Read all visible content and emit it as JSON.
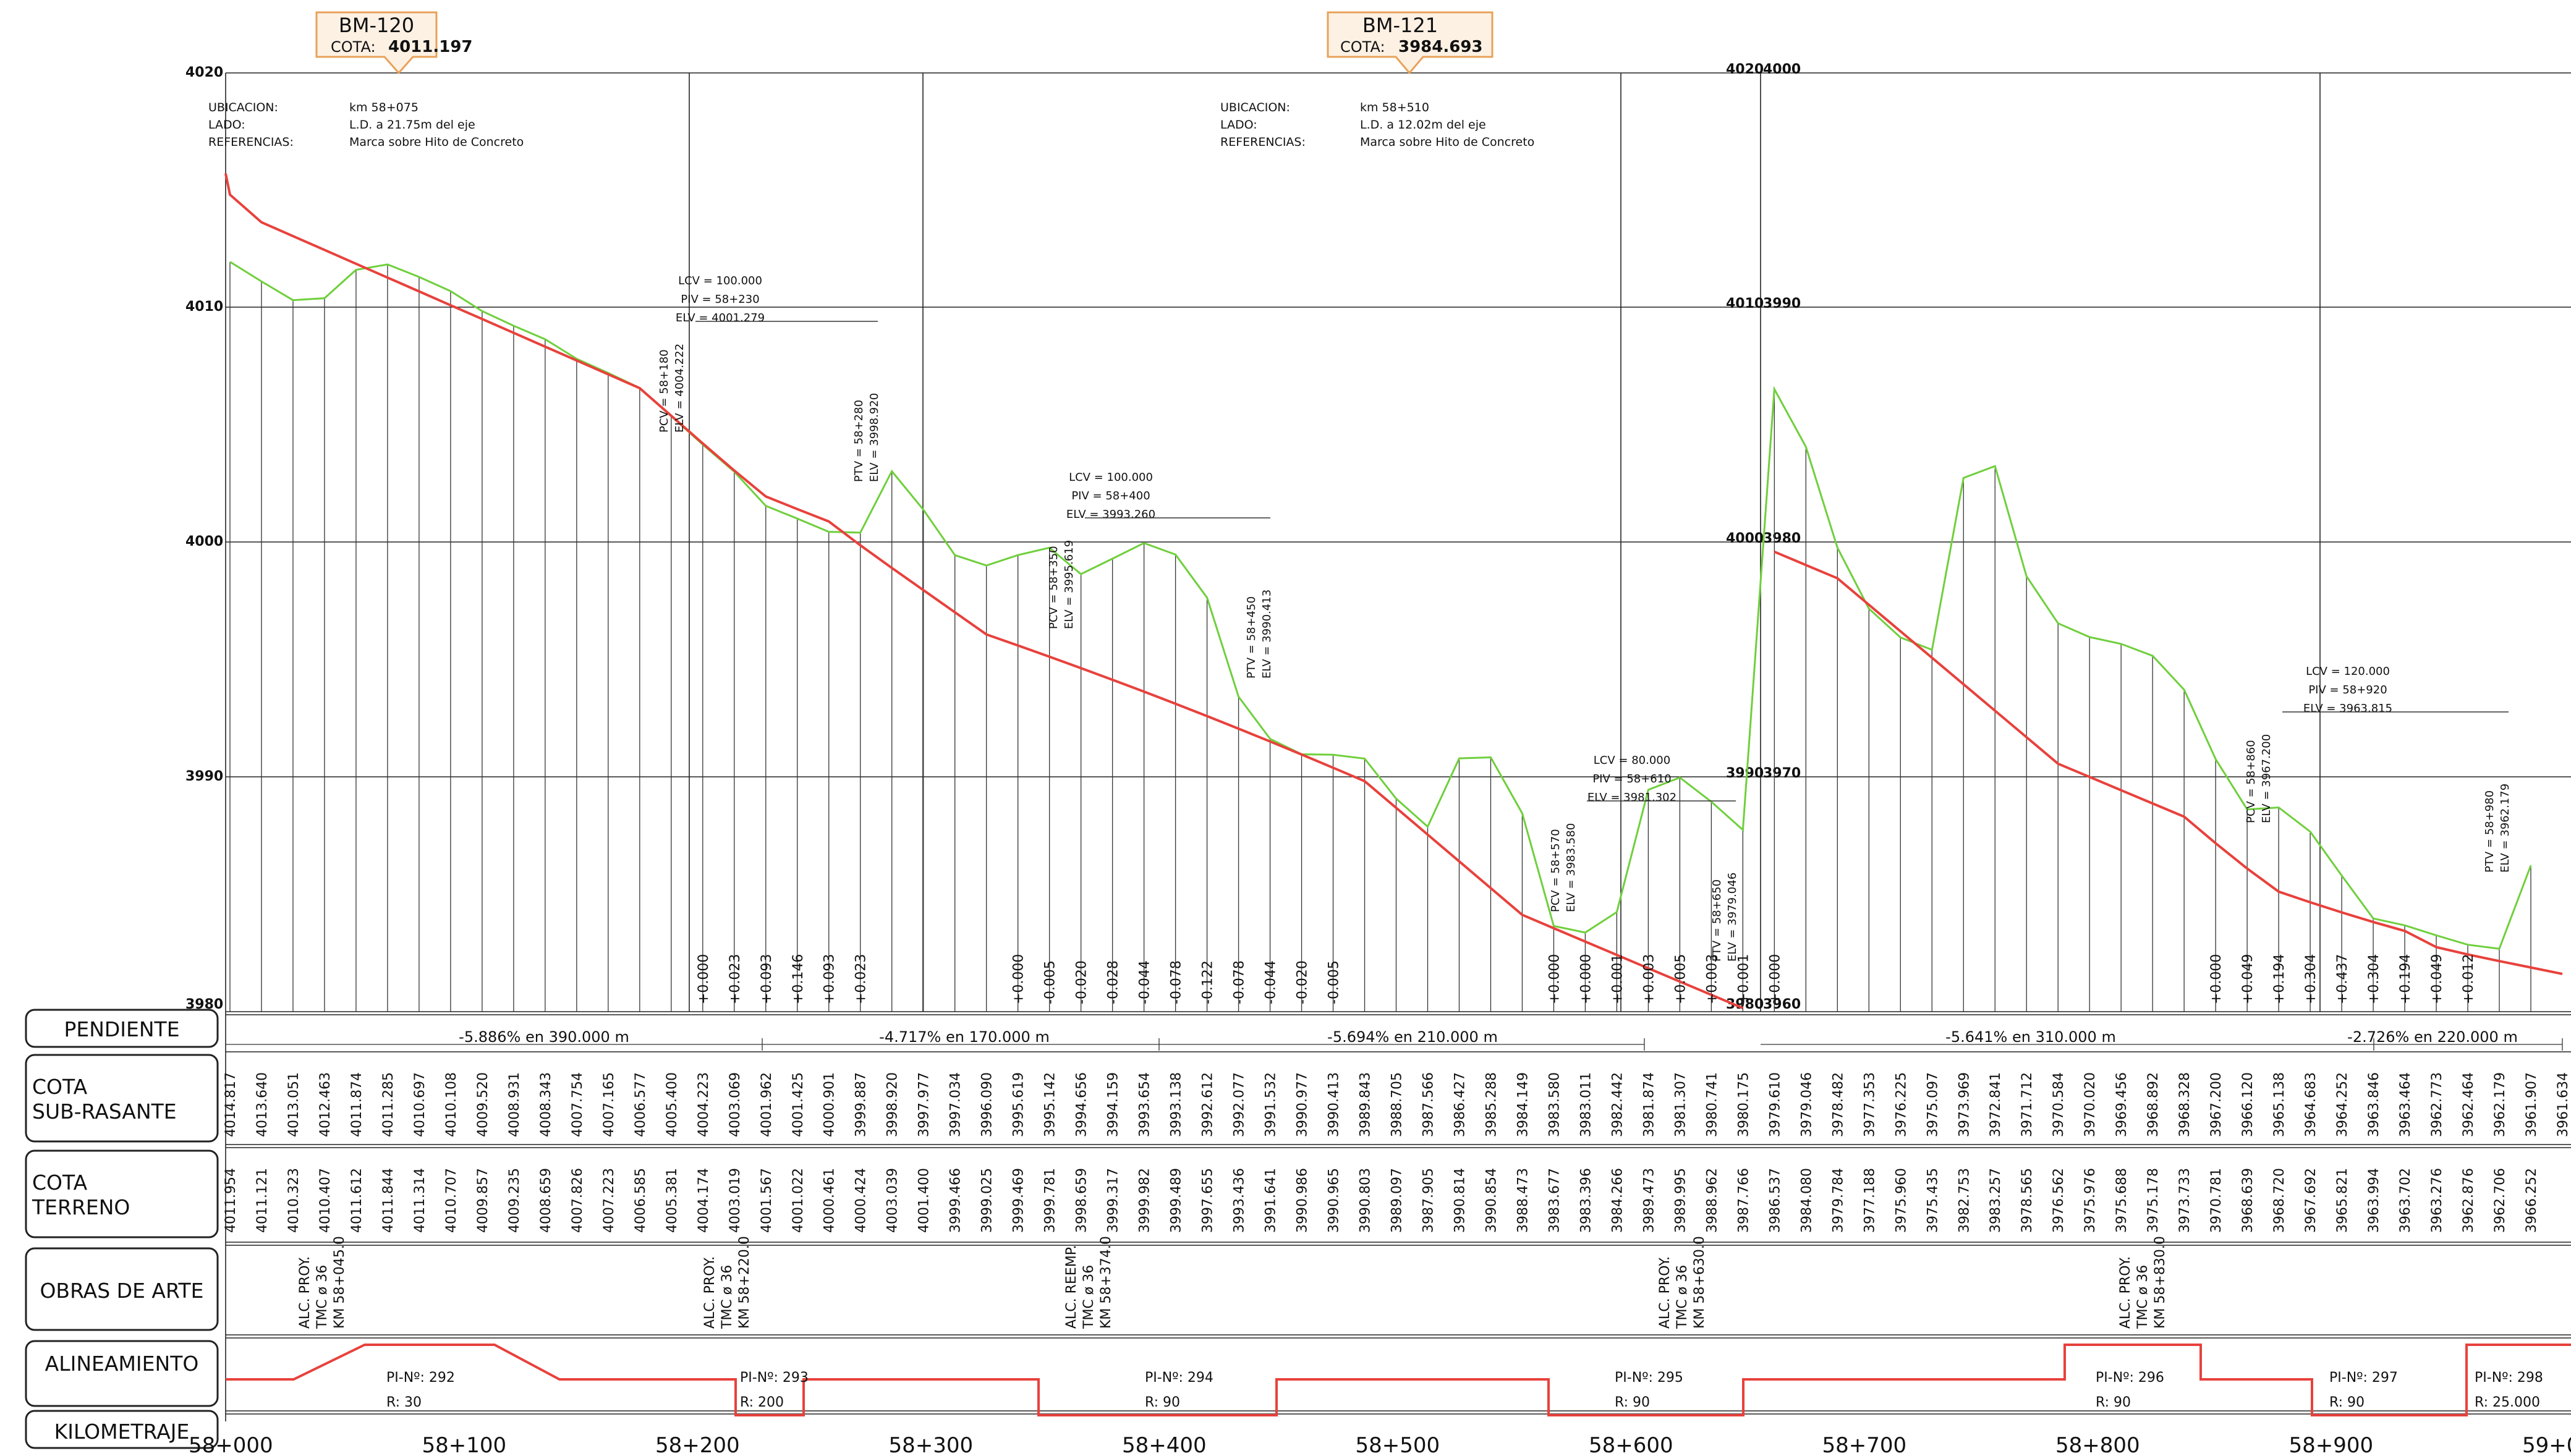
{
  "benchmarks": [
    {
      "id": "BM-120",
      "cota_label": "COTA:",
      "cota": "4011.197",
      "ubic_label": "UBICACION:",
      "ubic": "km  58+075",
      "lado_label": "LADO:",
      "lado": "L.D. a 21.75m  del  eje",
      "ref_label": "REFERENCIAS:",
      "ref": "Marca  sobre  Hito  de  Concreto"
    },
    {
      "id": "BM-121",
      "cota_label": "COTA:",
      "cota": "3984.693",
      "ubic_label": "UBICACION:",
      "ubic": "km  58+510",
      "lado_label": "LADO:",
      "lado": "L.D.  a  12.02m  del  eje",
      "ref_label": "REFERENCIAS:",
      "ref": "Marca  sobre  Hito  de  Concreto"
    }
  ],
  "elev_labels_left": [
    "4020",
    "4010",
    "4000",
    "3990",
    "3980"
  ],
  "elev_labels_mid": [
    "4020",
    "4010",
    "4000",
    "3990",
    "3980"
  ],
  "elev_labels_mid2": [
    "4000",
    "3990",
    "3980",
    "3970",
    "3960"
  ],
  "row_labels": {
    "pendiente": "PENDIENTE",
    "subrasante_1": "COTA",
    "subrasante_2": "SUB-RASANTE",
    "terreno_1": "COTA",
    "terreno_2": "TERRENO",
    "obras": "OBRAS DE ARTE",
    "alineamiento": "ALINEAMIENTO",
    "kilometraje": "KILOMETRAJE"
  },
  "km_labels": [
    "58+000",
    "58+100",
    "58+200",
    "58+300",
    "58+400",
    "58+500",
    "58+600",
    "58+700",
    "58+800",
    "58+900",
    "59+0"
  ],
  "slopes": [
    {
      "text": "-5.886%  en  390.000  m"
    },
    {
      "text": "-4.717%  en  170.000  m"
    },
    {
      "text": "-5.694%  en  210.000  m"
    },
    {
      "text": "-5.641%  en  310.000  m"
    },
    {
      "text": "-2.726%  en  220.000  m"
    }
  ],
  "stations": [
    {
      "sub": "4014.817",
      "ter": "4011.954",
      "cut": ""
    },
    {
      "sub": "4013.640",
      "ter": "4011.121",
      "cut": ""
    },
    {
      "sub": "4013.051",
      "ter": "4010.323",
      "cut": ""
    },
    {
      "sub": "4012.463",
      "ter": "4010.407",
      "cut": ""
    },
    {
      "sub": "4011.874",
      "ter": "4011.612",
      "cut": ""
    },
    {
      "sub": "4011.285",
      "ter": "4011.844",
      "cut": ""
    },
    {
      "sub": "4010.697",
      "ter": "4011.314",
      "cut": ""
    },
    {
      "sub": "4010.108",
      "ter": "4010.707",
      "cut": ""
    },
    {
      "sub": "4009.520",
      "ter": "4009.857",
      "cut": ""
    },
    {
      "sub": "4008.931",
      "ter": "4009.235",
      "cut": ""
    },
    {
      "sub": "4008.343",
      "ter": "4008.659",
      "cut": ""
    },
    {
      "sub": "4007.754",
      "ter": "4007.826",
      "cut": ""
    },
    {
      "sub": "4007.165",
      "ter": "4007.223",
      "cut": ""
    },
    {
      "sub": "4006.577",
      "ter": "4006.585",
      "cut": ""
    },
    {
      "sub": "4005.400",
      "ter": "4005.381",
      "cut": ""
    },
    {
      "sub": "4004.223",
      "ter": "4004.174",
      "cut": "+0.000"
    },
    {
      "sub": "4003.069",
      "ter": "4003.019",
      "cut": "+0.023"
    },
    {
      "sub": "4001.962",
      "ter": "4001.567",
      "cut": "+0.093"
    },
    {
      "sub": "4001.425",
      "ter": "4001.022",
      "cut": "+0.146"
    },
    {
      "sub": "4000.901",
      "ter": "4000.461",
      "cut": "+0.093"
    },
    {
      "sub": "3999.887",
      "ter": "4000.424",
      "cut": "+0.023"
    },
    {
      "sub": "3998.920",
      "ter": "4003.039",
      "cut": ""
    },
    {
      "sub": "3997.977",
      "ter": "4001.400",
      "cut": ""
    },
    {
      "sub": "3997.034",
      "ter": "3999.466",
      "cut": ""
    },
    {
      "sub": "3996.090",
      "ter": "3999.025",
      "cut": ""
    },
    {
      "sub": "3995.619",
      "ter": "3999.469",
      "cut": "+0.000"
    },
    {
      "sub": "3995.142",
      "ter": "3999.781",
      "cut": "-0.005"
    },
    {
      "sub": "3994.656",
      "ter": "3998.659",
      "cut": "-0.020"
    },
    {
      "sub": "3994.159",
      "ter": "3999.317",
      "cut": "-0.028"
    },
    {
      "sub": "3993.654",
      "ter": "3999.982",
      "cut": "-0.044"
    },
    {
      "sub": "3993.138",
      "ter": "3999.489",
      "cut": "-0.078"
    },
    {
      "sub": "3992.612",
      "ter": "3997.655",
      "cut": "-0.122"
    },
    {
      "sub": "3992.077",
      "ter": "3993.436",
      "cut": "-0.078"
    },
    {
      "sub": "3991.532",
      "ter": "3991.641",
      "cut": "-0.044"
    },
    {
      "sub": "3990.977",
      "ter": "3990.986",
      "cut": "-0.020"
    },
    {
      "sub": "3990.413",
      "ter": "3990.965",
      "cut": "-0.005"
    },
    {
      "sub": "3989.843",
      "ter": "3990.803",
      "cut": ""
    },
    {
      "sub": "3988.705",
      "ter": "3989.097",
      "cut": ""
    },
    {
      "sub": "3987.566",
      "ter": "3987.905",
      "cut": ""
    },
    {
      "sub": "3986.427",
      "ter": "3990.814",
      "cut": ""
    },
    {
      "sub": "3985.288",
      "ter": "3990.854",
      "cut": ""
    },
    {
      "sub": "3984.149",
      "ter": "3988.473",
      "cut": ""
    },
    {
      "sub": "3983.580",
      "ter": "3983.677",
      "cut": "+0.000"
    },
    {
      "sub": "3983.011",
      "ter": "3983.396",
      "cut": "+0.000"
    },
    {
      "sub": "3982.442",
      "ter": "3984.266",
      "cut": "+0.001"
    },
    {
      "sub": "3981.874",
      "ter": "3989.473",
      "cut": "+0.003"
    },
    {
      "sub": "3981.307",
      "ter": "3989.995",
      "cut": "+0.005"
    },
    {
      "sub": "3980.741",
      "ter": "3988.962",
      "cut": "+0.003"
    },
    {
      "sub": "3980.175",
      "ter": "3987.766",
      "cut": "+0.001"
    },
    {
      "sub": "3979.610",
      "ter": "3986.537",
      "cut": "+0.000"
    },
    {
      "sub": "3979.046",
      "ter": "3984.080",
      "cut": ""
    },
    {
      "sub": "3978.482",
      "ter": "3979.784",
      "cut": ""
    },
    {
      "sub": "3977.353",
      "ter": "3977.188",
      "cut": ""
    },
    {
      "sub": "3976.225",
      "ter": "3975.960",
      "cut": ""
    },
    {
      "sub": "3975.097",
      "ter": "3975.435",
      "cut": ""
    },
    {
      "sub": "3973.969",
      "ter": "3982.753",
      "cut": ""
    },
    {
      "sub": "3972.841",
      "ter": "3983.257",
      "cut": ""
    },
    {
      "sub": "3971.712",
      "ter": "3978.565",
      "cut": ""
    },
    {
      "sub": "3970.584",
      "ter": "3976.562",
      "cut": ""
    },
    {
      "sub": "3970.020",
      "ter": "3975.976",
      "cut": ""
    },
    {
      "sub": "3969.456",
      "ter": "3975.688",
      "cut": ""
    },
    {
      "sub": "3968.892",
      "ter": "3975.178",
      "cut": ""
    },
    {
      "sub": "3968.328",
      "ter": "3973.733",
      "cut": ""
    },
    {
      "sub": "3967.200",
      "ter": "3970.781",
      "cut": "+0.000"
    },
    {
      "sub": "3966.120",
      "ter": "3968.639",
      "cut": "+0.049"
    },
    {
      "sub": "3965.138",
      "ter": "3968.720",
      "cut": "+0.194"
    },
    {
      "sub": "3964.683",
      "ter": "3967.692",
      "cut": "+0.304"
    },
    {
      "sub": "3964.252",
      "ter": "3965.821",
      "cut": "+0.437"
    },
    {
      "sub": "3963.846",
      "ter": "3963.994",
      "cut": "+0.304"
    },
    {
      "sub": "3963.464",
      "ter": "3963.702",
      "cut": "+0.194"
    },
    {
      "sub": "3962.773",
      "ter": "3963.276",
      "cut": "+0.049"
    },
    {
      "sub": "3962.464",
      "ter": "3962.876",
      "cut": "+0.012"
    },
    {
      "sub": "3962.179",
      "ter": "3962.706",
      "cut": ""
    },
    {
      "sub": "3961.907",
      "ter": "3966.252",
      "cut": ""
    },
    {
      "sub": "3961.634",
      "ter": "",
      "cut": ""
    }
  ],
  "curves": [
    {
      "lcv": "LCV  =  100.000",
      "piv": "PIV  =  58+230",
      "elv": "ELV  =  4001.279",
      "pcv": "PCV  =  58+180",
      "pcv_elv": "ELV  =  4004.222",
      "ptv": "PTV  =  58+280",
      "ptv_elv": "ELV  =  3998.920"
    },
    {
      "lcv": "LCV  =  100.000",
      "piv": "PIV  =  58+400",
      "elv": "ELV  =  3993.260",
      "pcv": "PCV  =  58+350",
      "pcv_elv": "ELV  =  3995.619",
      "ptv": "PTV  =  58+450",
      "ptv_elv": "ELV  =  3990.413"
    },
    {
      "lcv": "LCV  =  80.000",
      "piv": "PIV  =  58+610",
      "elv": "ELV  =  3981.302",
      "pcv": "PCV  =  58+570",
      "pcv_elv": "ELV  =  3983.580",
      "ptv": "PTV  =  58+650",
      "ptv_elv": "ELV  =  3979.046"
    },
    {
      "lcv": "LCV  =  120.000",
      "piv": "PIV  =  58+920",
      "elv": "ELV  =  3963.815",
      "pcv": "PCV  =  58+860",
      "pcv_elv": "ELV  =  3967.200",
      "ptv": "PTV  =  58+980",
      "ptv_elv": "ELV  =  3962.179"
    }
  ],
  "obras": [
    {
      "l1": "ALC.  PROY.",
      "l2": "TMC  ø  36",
      "l3": "KM  58+045.0"
    },
    {
      "l1": "ALC.  PROY.",
      "l2": "TMC  ø  36",
      "l3": "KM  58+220.0"
    },
    {
      "l1": "ALC.  REEMP.",
      "l2": "TMC  ø  36",
      "l3": "KM  58+374.0"
    },
    {
      "l1": "ALC.  PROY.",
      "l2": "TMC  ø  36",
      "l3": "KM  58+630.0"
    },
    {
      "l1": "ALC.  PROY.",
      "l2": "TMC  ø  36",
      "l3": "KM  58+830.0"
    }
  ],
  "pis": [
    {
      "pi": "PI-Nº:  292",
      "r": "R:  30"
    },
    {
      "pi": "PI-Nº:  293",
      "r": "R:  200"
    },
    {
      "pi": "PI-Nº:  294",
      "r": "R:  90"
    },
    {
      "pi": "PI-Nº:  295",
      "r": "R:  90"
    },
    {
      "pi": "PI-Nº:  296",
      "r": "R:  90"
    },
    {
      "pi": "PI-Nº:  297",
      "r": "R:  90"
    },
    {
      "pi": "PI-Nº:  298",
      "r": "R:  25.000"
    }
  ],
  "colors": {
    "grade": "#e8413c",
    "ground": "#6fcf3c",
    "grid": "#222222",
    "bm_fill": "#fdf1e4",
    "bm_stroke": "#e8a25a"
  }
}
